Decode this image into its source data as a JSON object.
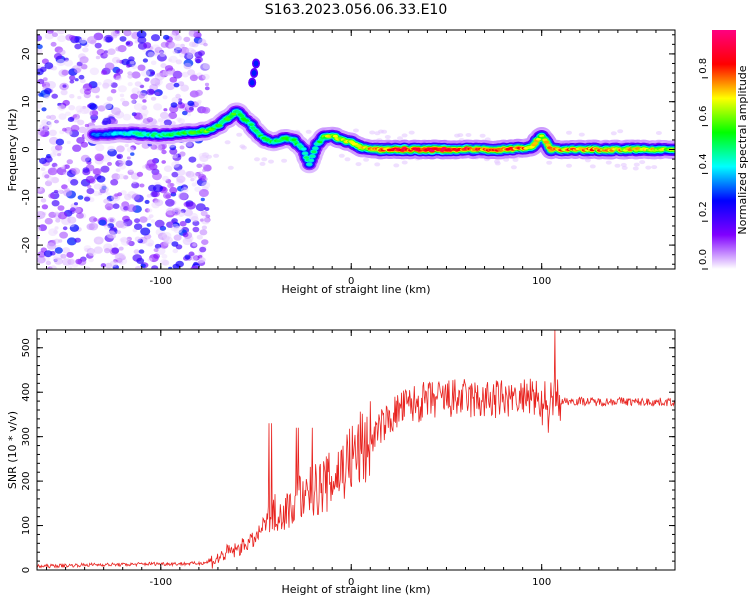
{
  "figure": {
    "title": "S163.2023.056.06.33.E10"
  },
  "chart_data": [
    {
      "type": "heatmap",
      "xlabel": "Height of straight line (km)",
      "ylabel": "Frequency (Hz)",
      "xlim": [
        -165,
        170
      ],
      "ylim": [
        -25,
        25
      ],
      "x_ticks": [
        -100,
        0,
        100
      ],
      "y_ticks": [
        -20,
        -10,
        0,
        10,
        20
      ],
      "grid": false,
      "colorbar": {
        "label": "Normalized spectral amplitude",
        "range": [
          0,
          1
        ],
        "ticks": [
          "0.0",
          "0.2",
          "0.4",
          "0.6",
          "0.8"
        ],
        "colors": [
          "#ffffff",
          "#8000ff",
          "#0000ff",
          "#00ffff",
          "#00ff00",
          "#ffff00",
          "#ff0000",
          "#ff0080"
        ]
      },
      "ridge": [
        {
          "x": -135,
          "y": 3,
          "a": 0.35
        },
        {
          "x": -120,
          "y": 3.5,
          "a": 0.45
        },
        {
          "x": -100,
          "y": 3,
          "a": 0.5
        },
        {
          "x": -85,
          "y": 3.5,
          "a": 0.55
        },
        {
          "x": -75,
          "y": 4,
          "a": 0.6
        },
        {
          "x": -70,
          "y": 5,
          "a": 0.55
        },
        {
          "x": -65,
          "y": 6.5,
          "a": 0.6
        },
        {
          "x": -60,
          "y": 8,
          "a": 0.55
        },
        {
          "x": -55,
          "y": 6,
          "a": 0.55
        },
        {
          "x": -50,
          "y": 4,
          "a": 0.5
        },
        {
          "x": -45,
          "y": 2,
          "a": 0.55
        },
        {
          "x": -40,
          "y": 1.5,
          "a": 0.55
        },
        {
          "x": -35,
          "y": 2.5,
          "a": 0.6
        },
        {
          "x": -30,
          "y": 2,
          "a": 0.55
        },
        {
          "x": -25,
          "y": 0,
          "a": 0.5
        },
        {
          "x": -22,
          "y": -3,
          "a": 0.45
        },
        {
          "x": -18,
          "y": 1,
          "a": 0.5
        },
        {
          "x": -15,
          "y": 2.5,
          "a": 0.6
        },
        {
          "x": -10,
          "y": 3,
          "a": 0.7
        },
        {
          "x": -5,
          "y": 2,
          "a": 0.65
        },
        {
          "x": 0,
          "y": 1.5,
          "a": 0.7
        },
        {
          "x": 5,
          "y": 0.5,
          "a": 0.7
        },
        {
          "x": 10,
          "y": 0,
          "a": 0.75
        },
        {
          "x": 20,
          "y": 0,
          "a": 0.85
        },
        {
          "x": 40,
          "y": 0,
          "a": 0.9
        },
        {
          "x": 60,
          "y": 0,
          "a": 0.88
        },
        {
          "x": 80,
          "y": 0,
          "a": 0.8
        },
        {
          "x": 90,
          "y": 0.3,
          "a": 0.85
        },
        {
          "x": 95,
          "y": 0.5,
          "a": 0.75
        },
        {
          "x": 100,
          "y": 3,
          "a": 0.65
        },
        {
          "x": 105,
          "y": 0,
          "a": 0.75
        },
        {
          "x": 120,
          "y": 0,
          "a": 0.8
        },
        {
          "x": 140,
          "y": 0,
          "a": 0.75
        },
        {
          "x": 160,
          "y": 0,
          "a": 0.7
        },
        {
          "x": 170,
          "y": 0,
          "a": 0.65
        }
      ]
    },
    {
      "type": "line",
      "xlabel": "Height of straight line (km)",
      "ylabel": "SNR (10 * v/v)",
      "xlim": [
        -165,
        170
      ],
      "ylim": [
        0,
        540
      ],
      "x_ticks": [
        -100,
        0,
        100
      ],
      "y_ticks": [
        0,
        100,
        200,
        300,
        400,
        500
      ],
      "grid": false,
      "series": [
        {
          "color": "#e8231f",
          "x": [
            -165,
            -150,
            -135,
            -120,
            -105,
            -90,
            -80,
            -75,
            -70,
            -65,
            -60,
            -55,
            -50,
            -45,
            -40,
            -35,
            -30,
            -25,
            -20,
            -15,
            -10,
            -5,
            0,
            5,
            10,
            15,
            20,
            25,
            30,
            40,
            50,
            60,
            70,
            80,
            90,
            100,
            105,
            108,
            110,
            115,
            120,
            130,
            140,
            150,
            160,
            170
          ],
          "y": [
            8,
            10,
            12,
            12,
            14,
            14,
            15,
            18,
            25,
            40,
            45,
            60,
            70,
            110,
            130,
            130,
            150,
            170,
            175,
            190,
            200,
            230,
            250,
            270,
            290,
            320,
            340,
            360,
            370,
            380,
            385,
            385,
            380,
            385,
            385,
            385,
            380,
            385,
            380,
            380,
            380,
            378,
            380,
            378,
            378,
            378
          ]
        }
      ]
    }
  ]
}
